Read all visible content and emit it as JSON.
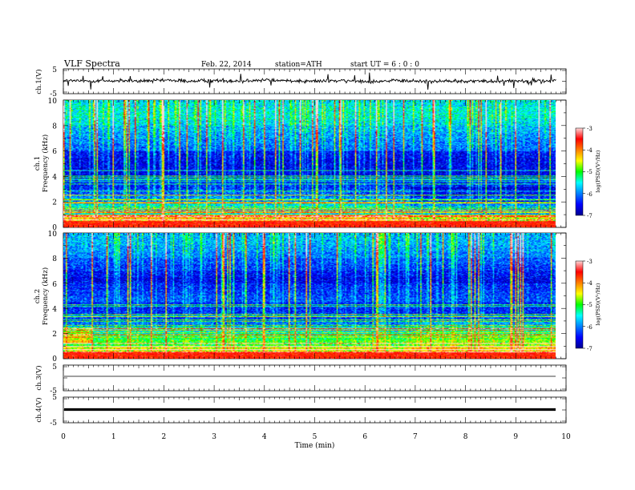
{
  "header": {
    "title": "VLF  Spectra",
    "date": "Feb. 22, 2014",
    "station": "station=ATH",
    "start": "start  UT  =   6  : 0  : 0"
  },
  "xaxis": {
    "label": "Time  (min)",
    "ticks": [
      "0",
      "1",
      "2",
      "3",
      "4",
      "5",
      "6",
      "7",
      "8",
      "9",
      "10"
    ]
  },
  "panels": {
    "ch1_wave": {
      "label": "ch.1(V)",
      "ticks": [
        "5",
        "-5"
      ]
    },
    "ch1_spec": {
      "label_ch": "ch.1",
      "label_freq": "Frequency  (kHz)",
      "ticks": [
        "10",
        "8",
        "6",
        "4",
        "2",
        "0"
      ],
      "colorbar": {
        "ticks": [
          "-3",
          "-4",
          "-5",
          "-6",
          "-7"
        ],
        "label": "log(PSD)(V²/Hz)"
      }
    },
    "ch2_spec": {
      "label_ch": "ch.2",
      "label_freq": "Frequency  (kHz)",
      "ticks": [
        "10",
        "8",
        "6",
        "4",
        "2",
        "0"
      ],
      "colorbar": {
        "ticks": [
          "-3",
          "-4",
          "-5",
          "-6",
          "-7"
        ],
        "label": "log(PSD)(V²/Hz)"
      }
    },
    "ch3_wave": {
      "label": "ch.3(V)",
      "ticks": [
        "5",
        "-5"
      ]
    },
    "ch4_wave": {
      "label": "ch.4(V)",
      "ticks": [
        "5",
        "-5"
      ]
    }
  },
  "chart_data": [
    {
      "type": "line",
      "panel": "ch.1(V)",
      "ylabel": "ch.1(V)",
      "xlim": [
        0,
        10
      ],
      "ylim": [
        -5,
        5
      ],
      "x": [
        0,
        0.5,
        1,
        1.5,
        2,
        2.5,
        3,
        3.5,
        4,
        4.5,
        5,
        5.5,
        6,
        6.5,
        7,
        7.5,
        8,
        8.5,
        9,
        9.5,
        9.8
      ],
      "y": [
        0.3,
        0.1,
        0.2,
        0.0,
        0.4,
        0.1,
        0.3,
        0.2,
        0.5,
        0.3,
        0.1,
        0.2,
        0.0,
        0.2,
        0.1,
        0.0,
        0.1,
        0.0,
        0.2,
        0.1,
        0.3
      ]
    },
    {
      "type": "heatmap",
      "panel": "ch.1",
      "xlabel": "Time  (min)",
      "ylabel": "Frequency  (kHz)",
      "xlim": [
        0,
        10
      ],
      "ylim": [
        0,
        10
      ],
      "data_extent_x": [
        0,
        9.8
      ],
      "colorbar_range": [
        -7,
        -3
      ],
      "colorbar_label": "log(PSD)(V²/Hz)",
      "frequency_profile_kHz": [
        0.25,
        0.75,
        1.25,
        1.75,
        2.25,
        2.75,
        3.25,
        3.75,
        4.25,
        4.75,
        5.25,
        5.75,
        6.25,
        6.75,
        7.25,
        7.75,
        8.25,
        8.75,
        9.25,
        9.75
      ],
      "typical_logpsd": [
        -3.8,
        -4.3,
        -5.6,
        -5.6,
        -6.0,
        -6.2,
        -6.4,
        -6.5,
        -6.6,
        -6.6,
        -6.6,
        -6.5,
        -6.1,
        -6.0,
        -5.9,
        -5.8,
        -5.6,
        -5.5,
        -5.5,
        -5.6
      ]
    },
    {
      "type": "heatmap",
      "panel": "ch.2",
      "xlabel": "Time  (min)",
      "ylabel": "Frequency  (kHz)",
      "xlim": [
        0,
        10
      ],
      "ylim": [
        0,
        10
      ],
      "data_extent_x": [
        0,
        9.8
      ],
      "colorbar_range": [
        -7,
        -3
      ],
      "colorbar_label": "log(PSD)(V²/Hz)",
      "frequency_profile_kHz": [
        0.25,
        0.75,
        1.25,
        1.75,
        2.25,
        2.75,
        3.25,
        3.75,
        4.25,
        4.75,
        5.25,
        5.75,
        6.25,
        6.75,
        7.25,
        7.75,
        8.25,
        8.75,
        9.25,
        9.75
      ],
      "typical_logpsd": [
        -3.9,
        -4.6,
        -5.0,
        -5.2,
        -5.6,
        -6.1,
        -6.3,
        -6.4,
        -6.4,
        -6.2,
        -6.3,
        -6.4,
        -6.6,
        -6.5,
        -6.3,
        -6.2,
        -6.0,
        -5.9,
        -5.8,
        -5.8
      ]
    },
    {
      "type": "line",
      "panel": "ch.3(V)",
      "ylabel": "ch.3(V)",
      "xlim": [
        0,
        10
      ],
      "ylim": [
        -5,
        5
      ],
      "x": [
        0,
        9.8
      ],
      "y": [
        0.0,
        0.0
      ]
    },
    {
      "type": "line",
      "panel": "ch.4(V)",
      "ylabel": "ch.4(V)",
      "xlim": [
        0,
        10
      ],
      "ylim": [
        -5,
        5
      ],
      "x": [
        0,
        9.8
      ],
      "y": [
        -0.3,
        -0.3
      ]
    }
  ]
}
